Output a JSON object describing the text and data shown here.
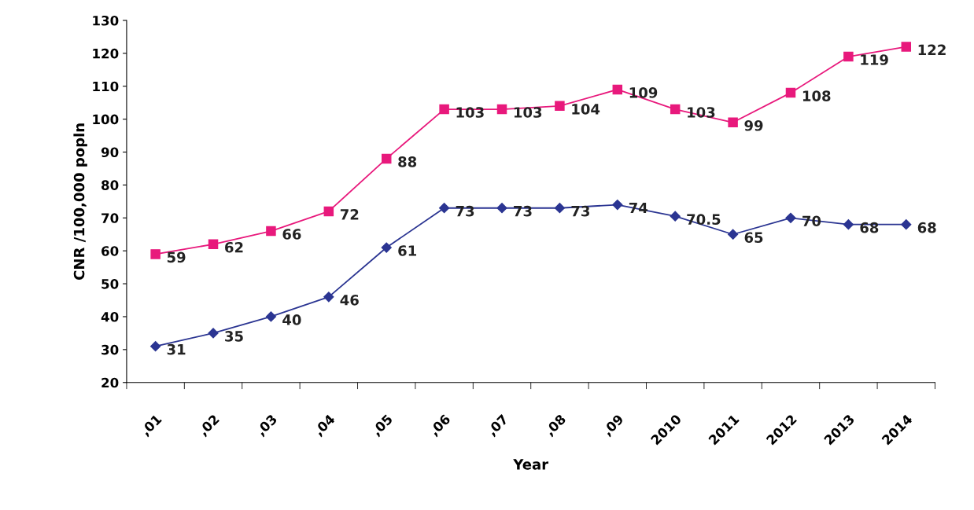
{
  "chart_data": {
    "type": "line",
    "xlabel": "Year",
    "ylabel": "CNR /100,000 popln",
    "categories": [
      ",01",
      ",02",
      ",03",
      ",04",
      ",05",
      ",06",
      ",07",
      ",08",
      ",09",
      "2010",
      "2011",
      "2012",
      "2013",
      "2014"
    ],
    "series": [
      {
        "color": "#e8197c",
        "marker": "square",
        "values": [
          59,
          62,
          66,
          72,
          88,
          103,
          103,
          104,
          109,
          103,
          99,
          108,
          119,
          122
        ]
      },
      {
        "color": "#2b3592",
        "marker": "diamond",
        "values": [
          31,
          35,
          40,
          46,
          61,
          73,
          73,
          73,
          74,
          70.5,
          65,
          70,
          68,
          68
        ]
      }
    ],
    "ylim": [
      20,
      130
    ],
    "yticks": [
      20,
      30,
      40,
      50,
      60,
      70,
      80,
      90,
      100,
      110,
      120,
      130
    ],
    "data_labels": true,
    "grid": false,
    "legend": false,
    "line_style": "solid"
  }
}
